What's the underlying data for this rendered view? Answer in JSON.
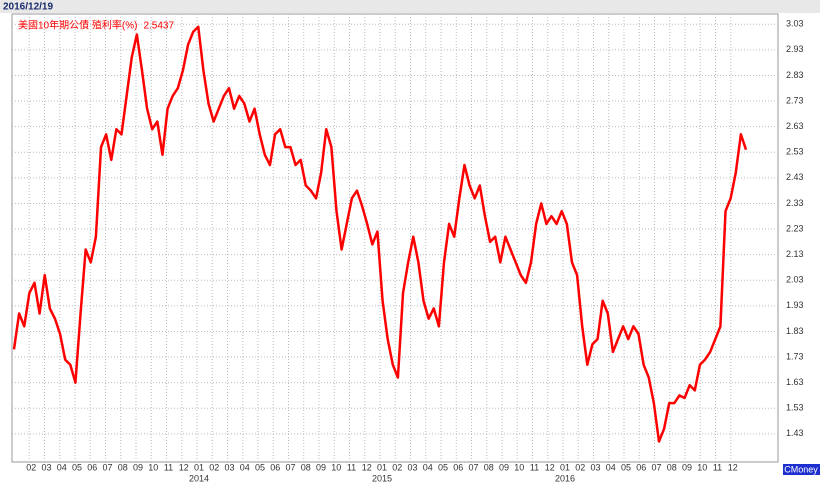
{
  "header": {
    "date": "2016/12/19"
  },
  "chart_data": {
    "type": "line",
    "legend_label": "美國10年期公債 殖利率(%)",
    "latest_value": 2.5437,
    "series": [
      {
        "name": "美國10年期公債 殖利率(%)",
        "color": "#ff0000",
        "values": [
          1.76,
          1.9,
          1.85,
          1.98,
          2.02,
          1.9,
          2.05,
          1.92,
          1.88,
          1.82,
          1.72,
          1.7,
          1.63,
          1.9,
          2.15,
          2.1,
          2.2,
          2.55,
          2.6,
          2.5,
          2.62,
          2.6,
          2.75,
          2.9,
          2.99,
          2.85,
          2.7,
          2.62,
          2.65,
          2.52,
          2.7,
          2.75,
          2.78,
          2.85,
          2.95,
          3.0,
          3.02,
          2.85,
          2.72,
          2.65,
          2.7,
          2.75,
          2.78,
          2.7,
          2.75,
          2.72,
          2.65,
          2.7,
          2.6,
          2.52,
          2.48,
          2.6,
          2.62,
          2.55,
          2.55,
          2.48,
          2.5,
          2.4,
          2.38,
          2.35,
          2.45,
          2.62,
          2.55,
          2.3,
          2.15,
          2.25,
          2.35,
          2.38,
          2.32,
          2.25,
          2.17,
          2.22,
          1.95,
          1.8,
          1.7,
          1.65,
          1.98,
          2.1,
          2.2,
          2.1,
          1.95,
          1.88,
          1.92,
          1.85,
          2.1,
          2.25,
          2.2,
          2.35,
          2.48,
          2.4,
          2.35,
          2.4,
          2.28,
          2.18,
          2.2,
          2.1,
          2.2,
          2.15,
          2.1,
          2.05,
          2.02,
          2.1,
          2.25,
          2.33,
          2.25,
          2.28,
          2.25,
          2.3,
          2.25,
          2.1,
          2.05,
          1.85,
          1.7,
          1.78,
          1.8,
          1.95,
          1.9,
          1.75,
          1.8,
          1.85,
          1.8,
          1.85,
          1.82,
          1.7,
          1.65,
          1.55,
          1.4,
          1.45,
          1.55,
          1.55,
          1.58,
          1.57,
          1.62,
          1.6,
          1.7,
          1.72,
          1.75,
          1.8,
          1.85,
          2.3,
          2.35,
          2.45,
          2.6,
          2.54
        ]
      }
    ],
    "ylim": [
      1.32,
      3.07
    ],
    "yticks": [
      3.03,
      2.93,
      2.83,
      2.73,
      2.63,
      2.53,
      2.43,
      2.33,
      2.23,
      2.13,
      2.03,
      1.93,
      1.83,
      1.73,
      1.63,
      1.53,
      1.43
    ],
    "xticks": [
      "02",
      "03",
      "04",
      "05",
      "06",
      "07",
      "08",
      "09",
      "10",
      "11",
      "12",
      "01",
      "02",
      "03",
      "04",
      "05",
      "06",
      "07",
      "08",
      "09",
      "10",
      "11",
      "12",
      "01",
      "02",
      "03",
      "04",
      "05",
      "06",
      "07",
      "08",
      "09",
      "10",
      "11",
      "12",
      "01",
      "02",
      "03",
      "04",
      "05",
      "06",
      "07",
      "08",
      "09",
      "10",
      "11",
      "12"
    ],
    "year_labels": [
      "2014",
      "2015",
      "2016"
    ],
    "grid": true
  },
  "watermark": "CMoney"
}
